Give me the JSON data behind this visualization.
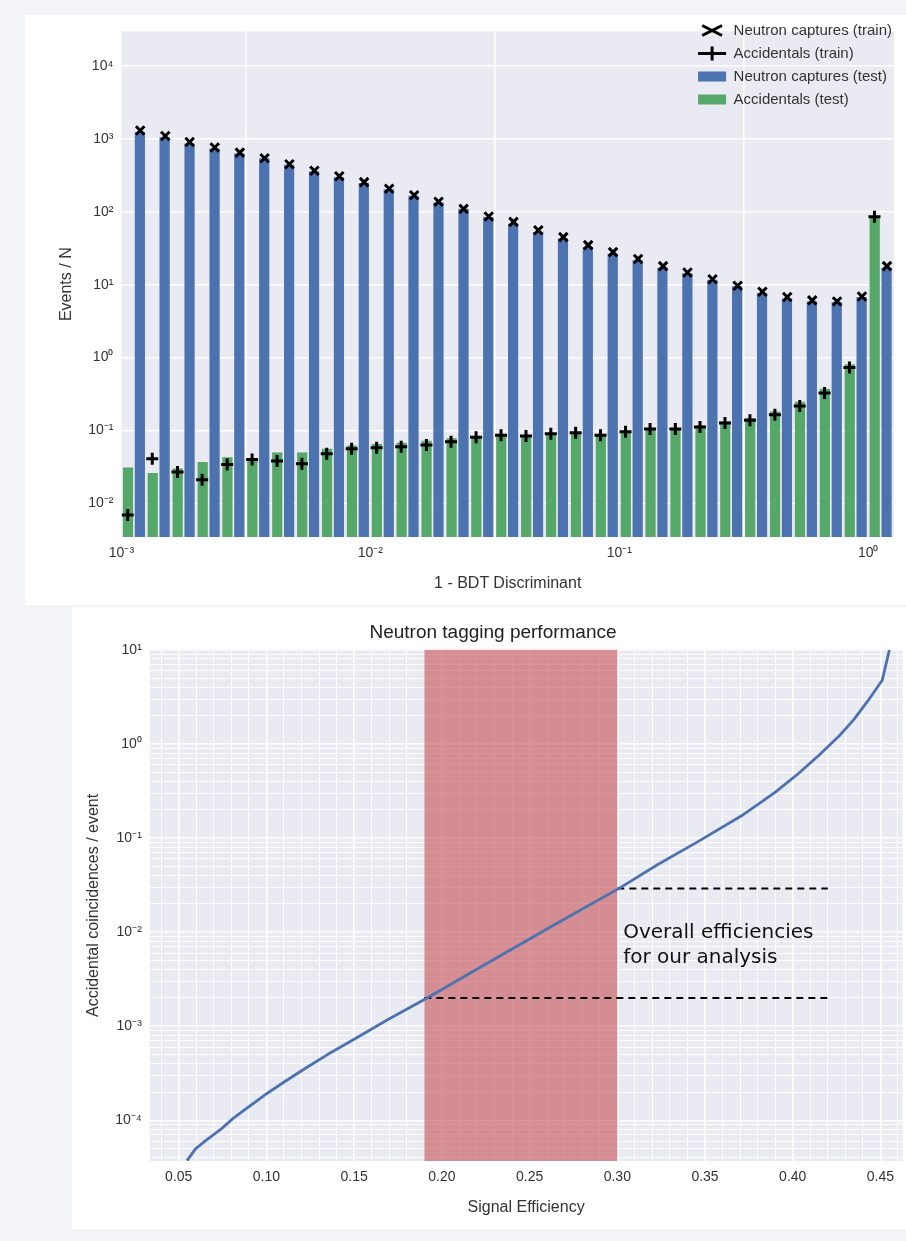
{
  "chart_data": [
    {
      "type": "histogram",
      "xlabel": "1 - BDT Discriminant",
      "ylabel": "Events / N",
      "log": "xy",
      "grid": true,
      "legend": "top right",
      "bins": [
        0.001,
        0.00126,
        0.00158,
        0.002,
        0.00251,
        0.00316,
        0.00398,
        0.00501,
        0.00631,
        0.00794,
        0.01,
        0.0126,
        0.0158,
        0.02,
        0.0251,
        0.0316,
        0.0398,
        0.0501,
        0.0631,
        0.0794,
        0.1,
        0.126,
        0.158,
        0.2,
        0.251,
        0.316,
        0.398,
        0.501,
        0.631,
        0.794,
        1,
        1.26
      ],
      "xlim": [
        0.001,
        1.27
      ],
      "ylim": [
        0.00345,
        30000
      ],
      "xticks": [
        {
          "value": 0.001,
          "label": "10⁻³"
        },
        {
          "value": 0.01,
          "label": "10⁻²"
        },
        {
          "value": 0.1,
          "label": "10⁻¹"
        },
        {
          "value": 1,
          "label": "10⁰"
        }
      ],
      "yticks": [
        {
          "value": 0.01,
          "label": "10⁻²"
        },
        {
          "value": 0.1,
          "label": "10⁻¹"
        },
        {
          "value": 1,
          "label": "10⁰"
        },
        {
          "value": 10,
          "label": "10¹"
        },
        {
          "value": 100,
          "label": "10²"
        },
        {
          "value": 1000,
          "label": "10³"
        },
        {
          "value": 10000,
          "label": "10⁴"
        }
      ],
      "series": [
        {
          "name": "Neutron captures (train)",
          "type": "scatter",
          "marker": "x",
          "color": "#000000",
          "x": [
            0.00119,
            0.0015,
            0.00188,
            0.00237,
            0.00299,
            0.00376,
            0.00473,
            0.00596,
            0.0075,
            0.00944,
            0.0119,
            0.015,
            0.0188,
            0.0237,
            0.0299,
            0.0376,
            0.0473,
            0.0596,
            0.075,
            0.0944,
            0.119,
            0.15,
            0.188,
            0.237,
            0.299,
            0.376,
            0.473,
            0.596,
            0.75,
            0.944,
            1.19
          ],
          "values": [
            1310,
            1100,
            910,
            765,
            650,
            545,
            451,
            367,
            308,
            256,
            208,
            169,
            138,
            110,
            86.5,
            73,
            56,
            45,
            35,
            28,
            22.6,
            18,
            14.7,
            11.9,
            9.7,
            8.0,
            6.8,
            6.1,
            5.9,
            6.9,
            18
          ]
        },
        {
          "name": "Accidentals (train)",
          "type": "scatter",
          "marker": "cross",
          "color": "#000000",
          "x": [
            0.00106,
            0.00133,
            0.00168,
            0.00211,
            0.00266,
            0.00335,
            0.00422,
            0.00531,
            0.00668,
            0.00841,
            0.0106,
            0.0133,
            0.0168,
            0.0211,
            0.0266,
            0.0335,
            0.0422,
            0.0531,
            0.0668,
            0.0841,
            0.106,
            0.133,
            0.168,
            0.211,
            0.266,
            0.335,
            0.422,
            0.531,
            0.668,
            0.841,
            1.06
          ],
          "values": [
            0.0069,
            0.041,
            0.027,
            0.021,
            0.034,
            0.04,
            0.038,
            0.035,
            0.048,
            0.056,
            0.058,
            0.06,
            0.063,
            0.07,
            0.081,
            0.086,
            0.084,
            0.09,
            0.093,
            0.086,
            0.096,
            0.105,
            0.105,
            0.112,
            0.127,
            0.138,
            0.164,
            0.217,
            0.328,
            0.73,
            86
          ]
        },
        {
          "name": "Neutron captures (test)",
          "color": "#4c72b0",
          "values": [
            1240,
            1060,
            865,
            740,
            635,
            545,
            443,
            360,
            299,
            250,
            204,
            166,
            135,
            110,
            85,
            69,
            53,
            43,
            33,
            26.7,
            21.7,
            17.1,
            14.4,
            11.7,
            9.5,
            7.7,
            6.4,
            5.9,
            5.8,
            6.8,
            17.1
          ]
        },
        {
          "name": "Accidentals (test)",
          "color": "#55a868",
          "values": [
            0.031,
            0.026,
            0.03,
            0.037,
            0.043,
            0.041,
            0.05,
            0.05,
            0.056,
            0.062,
            0.065,
            0.068,
            0.072,
            0.078,
            0.084,
            0.089,
            0.084,
            0.088,
            0.093,
            0.088,
            0.098,
            0.108,
            0.108,
            0.117,
            0.133,
            0.148,
            0.182,
            0.248,
            0.375,
            0.81,
            86
          ]
        }
      ]
    },
    {
      "type": "line",
      "title": "Neutron tagging performance",
      "xlabel": "Signal Efficiency",
      "ylabel": "Accidental coincidences / event",
      "log": "y",
      "grid": true,
      "marker": "none",
      "xlim": [
        0.0335,
        0.4625
      ],
      "ylim": [
        3.7e-05,
        10
      ],
      "xticks": [
        {
          "value": 0.04,
          "label": null
        },
        {
          "value": 0.05,
          "label": "0.05"
        },
        {
          "value": 0.06,
          "label": null
        },
        {
          "value": 0.07,
          "label": null
        },
        {
          "value": 0.08,
          "label": null
        },
        {
          "value": 0.09,
          "label": null
        },
        {
          "value": 0.1,
          "label": "0.10"
        },
        {
          "value": 0.11,
          "label": null
        },
        {
          "value": 0.12,
          "label": null
        },
        {
          "value": 0.13,
          "label": null
        },
        {
          "value": 0.14,
          "label": null
        },
        {
          "value": 0.15,
          "label": "0.15"
        },
        {
          "value": 0.16,
          "label": null
        },
        {
          "value": 0.17,
          "label": null
        },
        {
          "value": 0.18,
          "label": null
        },
        {
          "value": 0.19,
          "label": null
        },
        {
          "value": 0.2,
          "label": "0.20"
        },
        {
          "value": 0.21,
          "label": null
        },
        {
          "value": 0.22,
          "label": null
        },
        {
          "value": 0.23,
          "label": null
        },
        {
          "value": 0.24,
          "label": null
        },
        {
          "value": 0.25,
          "label": "0.25"
        },
        {
          "value": 0.26,
          "label": null
        },
        {
          "value": 0.27,
          "label": null
        },
        {
          "value": 0.28,
          "label": null
        },
        {
          "value": 0.29,
          "label": null
        },
        {
          "value": 0.3,
          "label": "0.30"
        },
        {
          "value": 0.31,
          "label": null
        },
        {
          "value": 0.32,
          "label": null
        },
        {
          "value": 0.33,
          "label": null
        },
        {
          "value": 0.34,
          "label": null
        },
        {
          "value": 0.35,
          "label": "0.35"
        },
        {
          "value": 0.36,
          "label": null
        },
        {
          "value": 0.37,
          "label": null
        },
        {
          "value": 0.38,
          "label": null
        },
        {
          "value": 0.39,
          "label": null
        },
        {
          "value": 0.4,
          "label": "0.40"
        },
        {
          "value": 0.41,
          "label": null
        },
        {
          "value": 0.42,
          "label": null
        },
        {
          "value": 0.43,
          "label": null
        },
        {
          "value": 0.44,
          "label": null
        },
        {
          "value": 0.45,
          "label": "0.45"
        },
        {
          "value": 0.46,
          "label": null
        }
      ],
      "yticks": [
        {
          "value": 4e-05,
          "label": null
        },
        {
          "value": 5e-05,
          "label": null
        },
        {
          "value": 6e-05,
          "label": null
        },
        {
          "value": 7e-05,
          "label": null
        },
        {
          "value": 8e-05,
          "label": null
        },
        {
          "value": 9e-05,
          "label": null
        },
        {
          "value": 0.0001,
          "label": "10⁻⁴"
        },
        {
          "value": 0.0002,
          "label": null
        },
        {
          "value": 0.0003,
          "label": null
        },
        {
          "value": 0.0004,
          "label": null
        },
        {
          "value": 0.0005,
          "label": null
        },
        {
          "value": 0.0006,
          "label": null
        },
        {
          "value": 0.0007,
          "label": null
        },
        {
          "value": 0.0008,
          "label": null
        },
        {
          "value": 0.0009,
          "label": null
        },
        {
          "value": 0.001,
          "label": "10⁻³"
        },
        {
          "value": 0.002,
          "label": null
        },
        {
          "value": 0.003,
          "label": null
        },
        {
          "value": 0.004,
          "label": null
        },
        {
          "value": 0.005,
          "label": null
        },
        {
          "value": 0.006,
          "label": null
        },
        {
          "value": 0.007,
          "label": null
        },
        {
          "value": 0.008,
          "label": null
        },
        {
          "value": 0.009,
          "label": null
        },
        {
          "value": 0.01,
          "label": "10⁻²"
        },
        {
          "value": 0.02,
          "label": null
        },
        {
          "value": 0.03,
          "label": null
        },
        {
          "value": 0.04,
          "label": null
        },
        {
          "value": 0.05,
          "label": null
        },
        {
          "value": 0.06,
          "label": null
        },
        {
          "value": 0.07,
          "label": null
        },
        {
          "value": 0.08,
          "label": null
        },
        {
          "value": 0.09,
          "label": null
        },
        {
          "value": 0.1,
          "label": "10⁻¹"
        },
        {
          "value": 0.2,
          "label": null
        },
        {
          "value": 0.3,
          "label": null
        },
        {
          "value": 0.4,
          "label": null
        },
        {
          "value": 0.5,
          "label": null
        },
        {
          "value": 0.6,
          "label": null
        },
        {
          "value": 0.7,
          "label": null
        },
        {
          "value": 0.8,
          "label": null
        },
        {
          "value": 0.9,
          "label": null
        },
        {
          "value": 1,
          "label": "10⁰"
        },
        {
          "value": 2,
          "label": null
        },
        {
          "value": 3,
          "label": null
        },
        {
          "value": 4,
          "label": null
        },
        {
          "value": 5,
          "label": null
        },
        {
          "value": 6,
          "label": null
        },
        {
          "value": 7,
          "label": null
        },
        {
          "value": 8,
          "label": null
        },
        {
          "value": 9,
          "label": null
        },
        {
          "value": 10,
          "label": "10¹"
        }
      ],
      "series": [
        {
          "color": "#4c72b0",
          "x": [
            0.0547,
            0.0597,
            0.0659,
            0.0739,
            0.081,
            0.0881,
            0.1003,
            0.1105,
            0.1227,
            0.1348,
            0.149,
            0.1693,
            0.1906,
            0.2641,
            0.3008,
            0.3231,
            0.3455,
            0.3718,
            0.3901,
            0.4023,
            0.4145,
            0.4267,
            0.4347,
            0.4428,
            0.451,
            0.4551
          ],
          "values": [
            3.73e-05,
            5e-05,
            6.2e-05,
            8e-05,
            0.000105,
            0.000132,
            0.000193,
            0.000259,
            0.000362,
            0.0005,
            0.00071,
            0.00118,
            0.00195,
            0.012,
            0.029,
            0.0524,
            0.0905,
            0.177,
            0.307,
            0.468,
            0.745,
            1.23,
            1.8,
            2.86,
            4.74,
            10
          ]
        },
        {
          "color": "#000000",
          "line_style": "dashed",
          "x": [
            0.19,
            0.42
          ],
          "values": [
            0.002,
            0.002
          ]
        },
        {
          "color": "#000000",
          "line_style": "dashed",
          "x": [
            0.3,
            0.42
          ],
          "values": [
            0.029,
            0.029
          ]
        }
      ],
      "bands": [
        {
          "axis": "x",
          "from": 0.19,
          "to": 0.3,
          "color": "#c44e52"
        }
      ],
      "annotations": [
        "Overall efficiencies\nfor our analysis"
      ]
    }
  ]
}
